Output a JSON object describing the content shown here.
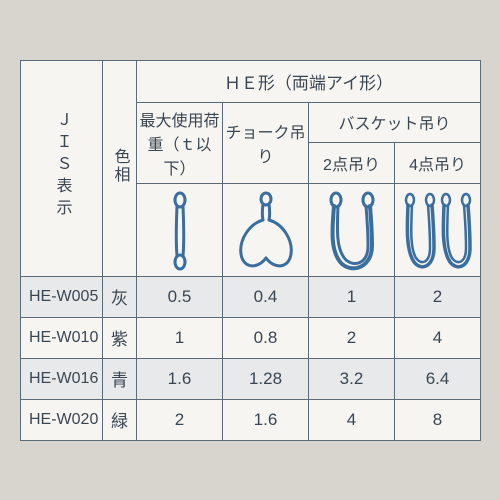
{
  "header": {
    "jis": "ＪＩＳ表示",
    "color": "色相",
    "he_form": "ＨＥ形（両端アイ形）",
    "max_load": "最大使用荷重（ｔ以下）",
    "choker": "チョーク吊り",
    "basket": "バスケット吊り",
    "pt2": "2点吊り",
    "pt4": "4点吊り"
  },
  "icon_stroke": "#3a6e9e",
  "rows": [
    {
      "code": "HE-W005",
      "color": "灰",
      "v1": "0.5",
      "v2": "0.4",
      "v3": "1",
      "v4": "2",
      "alt": true
    },
    {
      "code": "HE-W010",
      "color": "紫",
      "v1": "1",
      "v2": "0.8",
      "v3": "2",
      "v4": "4",
      "alt": false
    },
    {
      "code": "HE-W016",
      "color": "青",
      "v1": "1.6",
      "v2": "1.28",
      "v3": "3.2",
      "v4": "6.4",
      "alt": true
    },
    {
      "code": "HE-W020",
      "color": "緑",
      "v1": "2",
      "v2": "1.6",
      "v3": "4",
      "v4": "8",
      "alt": false
    }
  ]
}
